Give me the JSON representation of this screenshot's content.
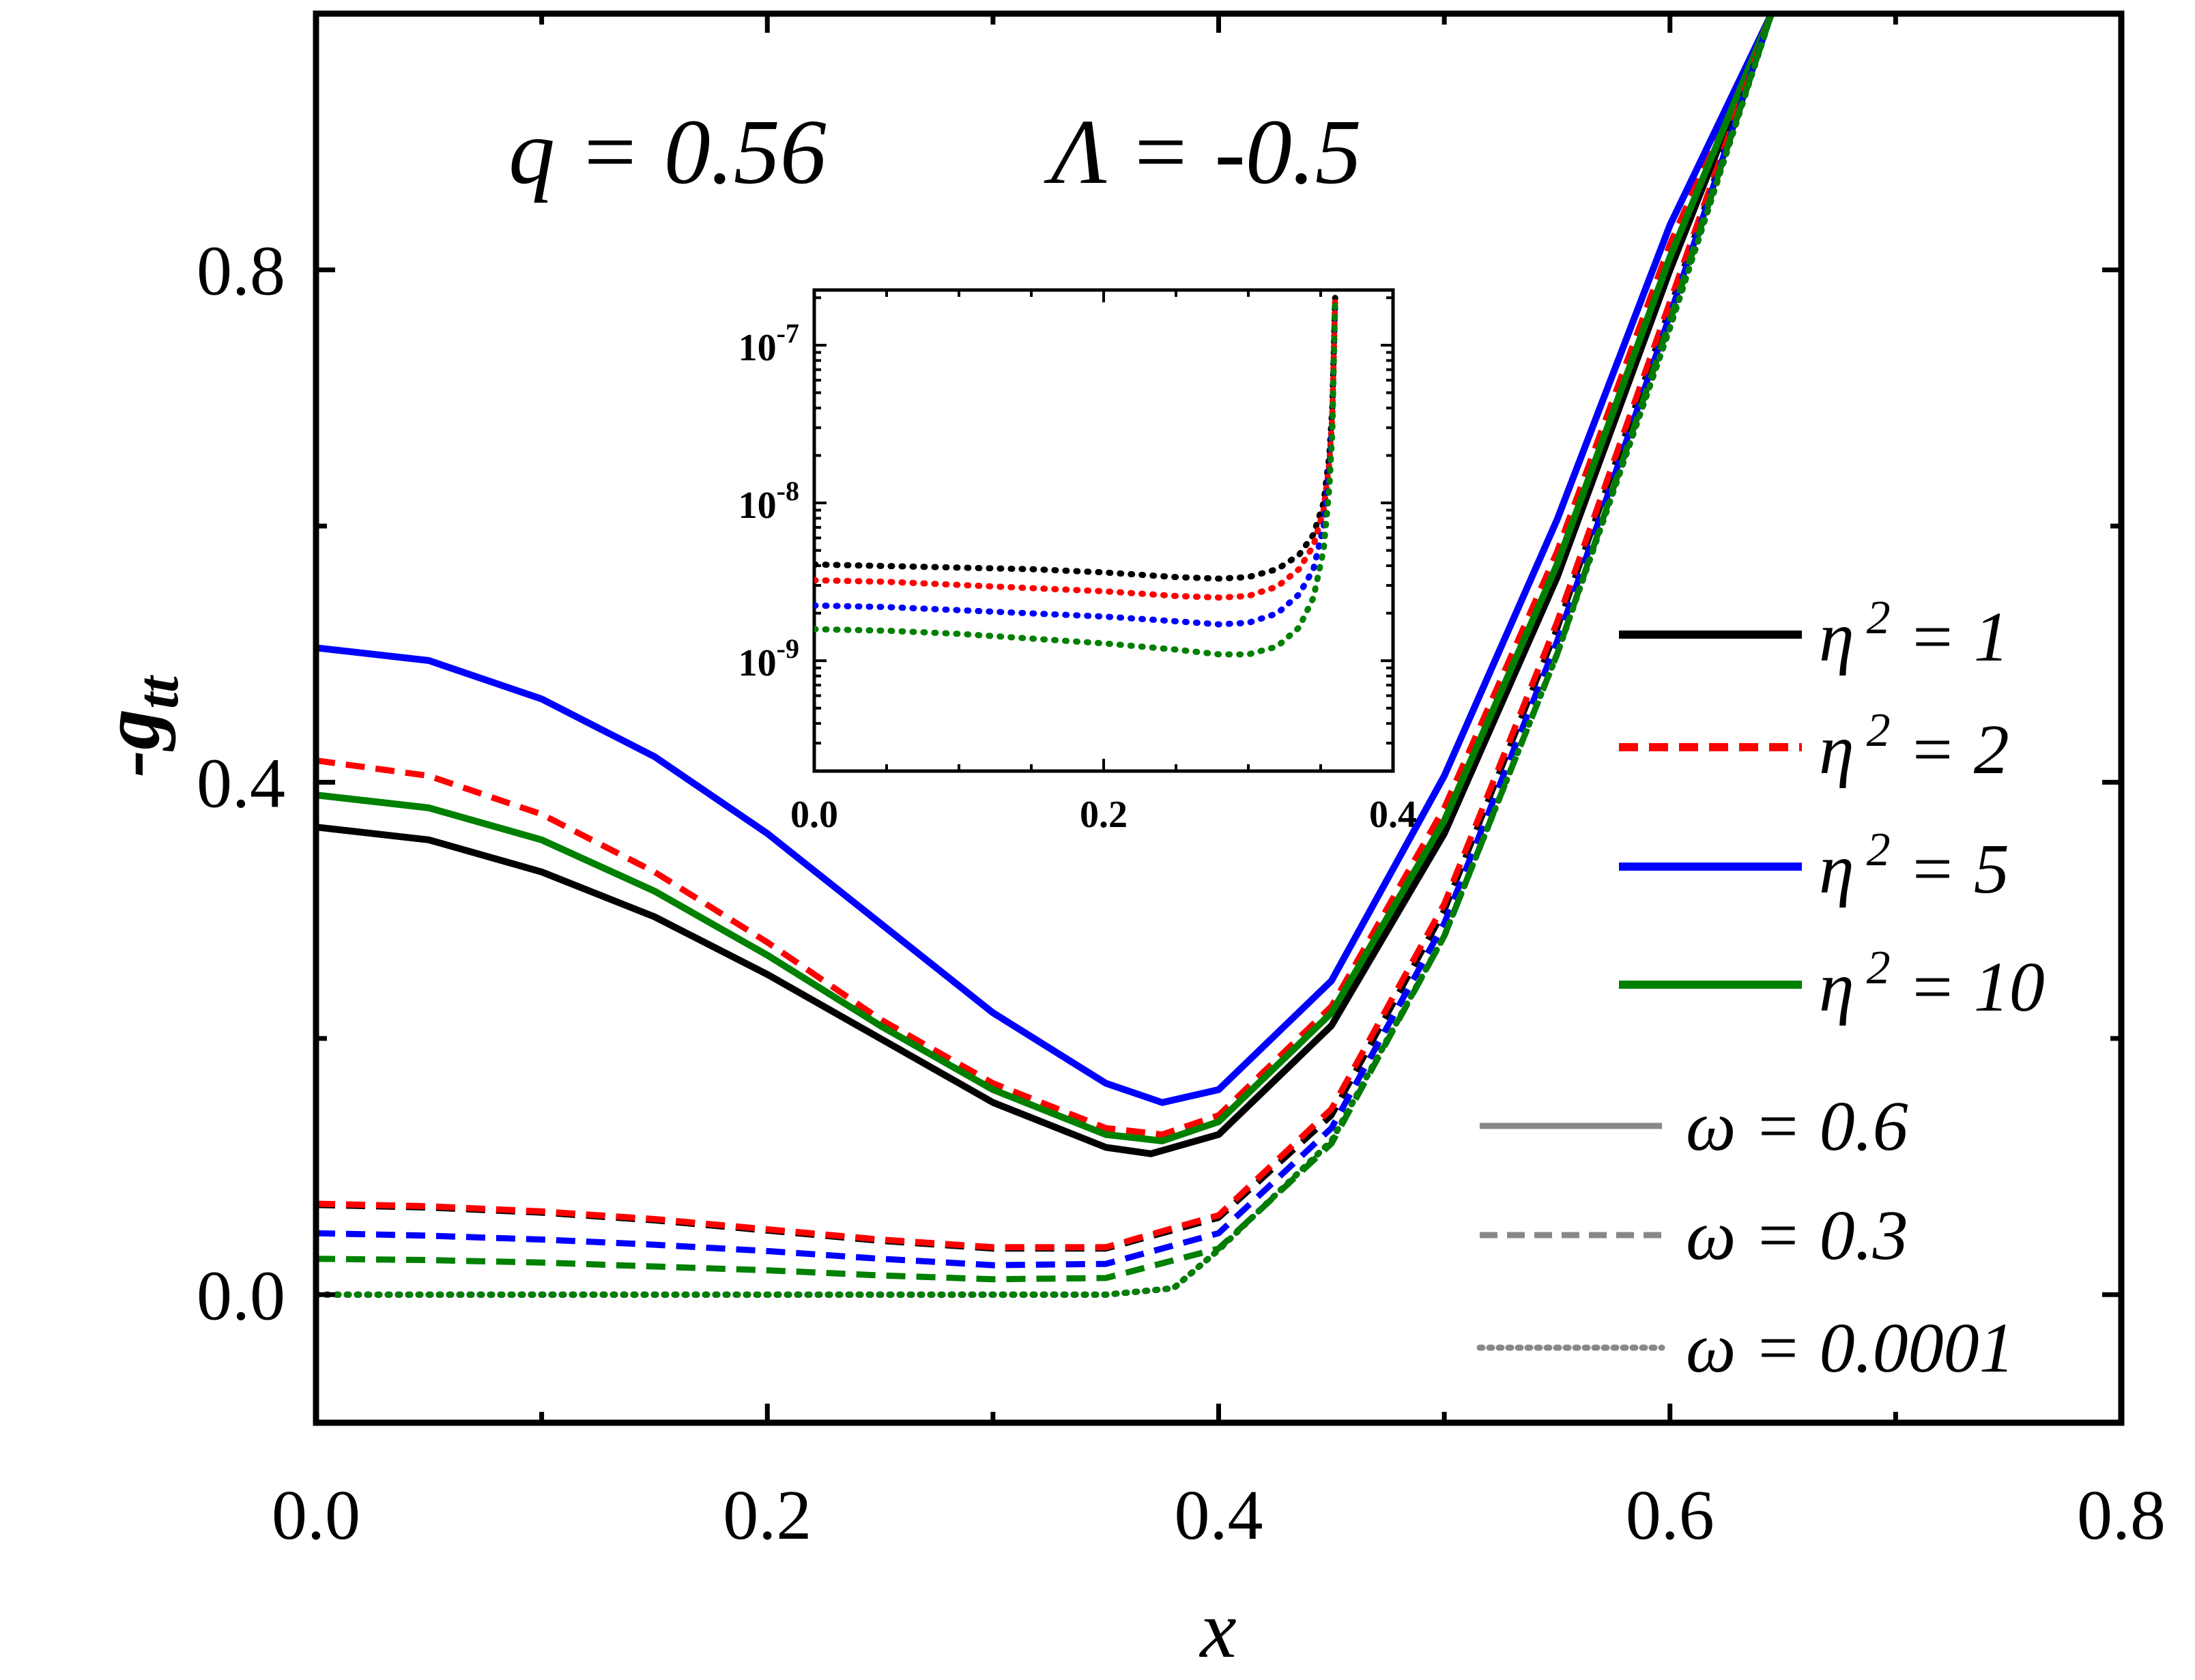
{
  "chart_data": [
    {
      "type": "line",
      "title": "",
      "annotation_q": "q = 0.56",
      "annotation_lambda": "Λ = -0.5",
      "xlabel": "x",
      "ylabel_prefix": "-g",
      "ylabel_sub": "tt",
      "xlim": [
        0.0,
        0.8
      ],
      "ylim": [
        -0.1,
        1.0
      ],
      "xticks": [
        "0.0",
        "0.2",
        "0.4",
        "0.6",
        "0.8"
      ],
      "yticks": [
        "0.0",
        "0.4",
        "0.8"
      ],
      "ytick_values": [
        0.0,
        0.4,
        0.8
      ],
      "xtick_values": [
        0.0,
        0.2,
        0.4,
        0.6,
        0.8
      ],
      "colors": {
        "eta1": "#000000",
        "eta2": "#ff0000",
        "eta5": "#0000ff",
        "eta10": "#008000",
        "legend_gray": "#888888"
      },
      "legend_eta": [
        {
          "label": "η² = 1",
          "prefix": "η",
          "sup": "2",
          "suffix": " = 1",
          "color": "#000000"
        },
        {
          "label": "η² = 2",
          "prefix": "η",
          "sup": "2",
          "suffix": " = 2",
          "color": "#ff0000",
          "dash": true
        },
        {
          "label": "η² = 5",
          "prefix": "η",
          "sup": "2",
          "suffix": " = 5",
          "color": "#0000ff"
        },
        {
          "label": "η² = 10",
          "prefix": "η",
          "sup": "2",
          "suffix": " = 10",
          "color": "#008000"
        }
      ],
      "legend_omega": [
        {
          "label": "ω = 0.6",
          "style": "solid"
        },
        {
          "label": "ω = 0.3",
          "style": "dash"
        },
        {
          "label": "ω = 0.0001",
          "style": "dot"
        }
      ],
      "series": [
        {
          "name": "eta2=1, omega=0.6",
          "color": "#000000",
          "style": "solid",
          "x": [
            0.0,
            0.05,
            0.1,
            0.15,
            0.2,
            0.25,
            0.3,
            0.35,
            0.37,
            0.4,
            0.45,
            0.5,
            0.55,
            0.6,
            0.645
          ],
          "y": [
            0.365,
            0.355,
            0.33,
            0.295,
            0.25,
            0.2,
            0.15,
            0.115,
            0.11,
            0.125,
            0.21,
            0.36,
            0.56,
            0.8,
            1.0
          ]
        },
        {
          "name": "eta2=2, omega=0.6",
          "color": "#ff0000",
          "style": "dash",
          "x": [
            0.0,
            0.05,
            0.1,
            0.15,
            0.2,
            0.25,
            0.3,
            0.35,
            0.375,
            0.4,
            0.45,
            0.5,
            0.55,
            0.6,
            0.645
          ],
          "y": [
            0.417,
            0.405,
            0.375,
            0.33,
            0.275,
            0.215,
            0.165,
            0.13,
            0.125,
            0.14,
            0.225,
            0.38,
            0.58,
            0.82,
            1.0
          ]
        },
        {
          "name": "eta2=5, omega=0.6",
          "color": "#0000ff",
          "style": "solid",
          "x": [
            0.0,
            0.05,
            0.1,
            0.15,
            0.2,
            0.25,
            0.3,
            0.35,
            0.375,
            0.4,
            0.45,
            0.5,
            0.55,
            0.6,
            0.645
          ],
          "y": [
            0.505,
            0.495,
            0.465,
            0.42,
            0.36,
            0.29,
            0.22,
            0.165,
            0.15,
            0.16,
            0.245,
            0.405,
            0.605,
            0.835,
            1.0
          ]
        },
        {
          "name": "eta2=10, omega=0.6",
          "color": "#008000",
          "style": "solid",
          "x": [
            0.0,
            0.05,
            0.1,
            0.15,
            0.2,
            0.25,
            0.3,
            0.35,
            0.375,
            0.4,
            0.45,
            0.5,
            0.55,
            0.6,
            0.645
          ],
          "y": [
            0.39,
            0.38,
            0.355,
            0.315,
            0.265,
            0.21,
            0.16,
            0.125,
            0.12,
            0.135,
            0.22,
            0.37,
            0.57,
            0.81,
            1.0
          ]
        },
        {
          "name": "eta2=1, omega=0.3",
          "color": "#000000",
          "style": "dash",
          "x": [
            0.0,
            0.05,
            0.1,
            0.15,
            0.2,
            0.25,
            0.3,
            0.35,
            0.4,
            0.45,
            0.5,
            0.55,
            0.6,
            0.645
          ],
          "y": [
            0.07,
            0.068,
            0.064,
            0.058,
            0.05,
            0.042,
            0.036,
            0.036,
            0.06,
            0.14,
            0.3,
            0.52,
            0.77,
            1.0
          ]
        },
        {
          "name": "eta2=2, omega=0.3",
          "color": "#ff0000",
          "style": "dash",
          "x": [
            0.0,
            0.05,
            0.1,
            0.15,
            0.2,
            0.25,
            0.3,
            0.35,
            0.4,
            0.45,
            0.5,
            0.55,
            0.6,
            0.645
          ],
          "y": [
            0.071,
            0.069,
            0.065,
            0.059,
            0.051,
            0.043,
            0.037,
            0.037,
            0.062,
            0.145,
            0.305,
            0.525,
            0.775,
            1.0
          ]
        },
        {
          "name": "eta2=5, omega=0.3",
          "color": "#0000ff",
          "style": "dash",
          "x": [
            0.0,
            0.05,
            0.1,
            0.15,
            0.2,
            0.25,
            0.3,
            0.35,
            0.4,
            0.45,
            0.5,
            0.55,
            0.6,
            0.645
          ],
          "y": [
            0.048,
            0.046,
            0.043,
            0.039,
            0.034,
            0.028,
            0.023,
            0.024,
            0.048,
            0.13,
            0.29,
            0.51,
            0.765,
            1.0
          ]
        },
        {
          "name": "eta2=10, omega=0.3",
          "color": "#008000",
          "style": "dash",
          "x": [
            0.0,
            0.05,
            0.1,
            0.15,
            0.2,
            0.25,
            0.3,
            0.35,
            0.4,
            0.45,
            0.5,
            0.55,
            0.6,
            0.645
          ],
          "y": [
            0.028,
            0.027,
            0.025,
            0.022,
            0.019,
            0.015,
            0.012,
            0.013,
            0.036,
            0.118,
            0.28,
            0.5,
            0.76,
            1.0
          ]
        },
        {
          "name": "eta2=1, omega=0.0001",
          "color": "#000000",
          "style": "dot",
          "x": [
            0.0,
            0.1,
            0.2,
            0.3,
            0.35,
            0.38,
            0.4,
            0.45,
            0.5,
            0.55,
            0.6,
            0.645
          ],
          "y": [
            0.0,
            0.0,
            0.0,
            0.0,
            0.0,
            0.005,
            0.035,
            0.12,
            0.28,
            0.5,
            0.755,
            1.0
          ]
        },
        {
          "name": "eta2=2, omega=0.0001",
          "color": "#ff0000",
          "style": "dot",
          "x": [
            0.0,
            0.1,
            0.2,
            0.3,
            0.35,
            0.38,
            0.4,
            0.45,
            0.5,
            0.55,
            0.6,
            0.645
          ],
          "y": [
            0.0,
            0.0,
            0.0,
            0.0,
            0.0,
            0.005,
            0.035,
            0.12,
            0.28,
            0.5,
            0.755,
            1.0
          ]
        },
        {
          "name": "eta2=5, omega=0.0001",
          "color": "#0000ff",
          "style": "dot",
          "x": [
            0.0,
            0.1,
            0.2,
            0.3,
            0.35,
            0.38,
            0.4,
            0.45,
            0.5,
            0.55,
            0.6,
            0.645
          ],
          "y": [
            0.0,
            0.0,
            0.0,
            0.0,
            0.0,
            0.005,
            0.035,
            0.12,
            0.28,
            0.5,
            0.755,
            1.0
          ]
        },
        {
          "name": "eta2=10, omega=0.0001",
          "color": "#008000",
          "style": "dot",
          "x": [
            0.0,
            0.1,
            0.2,
            0.3,
            0.35,
            0.38,
            0.4,
            0.45,
            0.5,
            0.55,
            0.6,
            0.645
          ],
          "y": [
            0.0,
            0.0,
            0.0,
            0.0,
            0.0,
            0.005,
            0.035,
            0.12,
            0.28,
            0.5,
            0.755,
            1.0
          ]
        }
      ]
    },
    {
      "type": "line",
      "title": "inset",
      "yscale": "log",
      "xlim": [
        0.0,
        0.4
      ],
      "ylim_log10": [
        -9.7,
        -6.65
      ],
      "xticks": [
        "0.0",
        "0.2",
        "0.4"
      ],
      "xtick_values": [
        0.0,
        0.2,
        0.4
      ],
      "yticks": [
        {
          "base": "10",
          "exp": "-9",
          "log10": -9
        },
        {
          "base": "10",
          "exp": "-8",
          "log10": -8
        },
        {
          "base": "10",
          "exp": "-7",
          "log10": -7
        }
      ],
      "series": [
        {
          "name": "eta2=1, omega=0.0001",
          "color": "#000000",
          "style": "dot",
          "x": [
            0.0,
            0.05,
            0.1,
            0.15,
            0.2,
            0.25,
            0.28,
            0.3,
            0.32,
            0.335,
            0.345,
            0.352,
            0.356,
            0.358,
            0.36
          ],
          "y_log10": [
            -8.39,
            -8.4,
            -8.41,
            -8.42,
            -8.44,
            -8.47,
            -8.48,
            -8.47,
            -8.42,
            -8.33,
            -8.2,
            -8.0,
            -7.7,
            -7.4,
            -6.7
          ]
        },
        {
          "name": "eta2=2, omega=0.0001",
          "color": "#ff0000",
          "style": "dot",
          "x": [
            0.0,
            0.05,
            0.1,
            0.15,
            0.2,
            0.25,
            0.28,
            0.3,
            0.32,
            0.335,
            0.345,
            0.352,
            0.356,
            0.358,
            0.36
          ],
          "y_log10": [
            -8.49,
            -8.5,
            -8.52,
            -8.54,
            -8.56,
            -8.59,
            -8.6,
            -8.59,
            -8.53,
            -8.42,
            -8.27,
            -8.05,
            -7.75,
            -7.45,
            -6.7
          ]
        },
        {
          "name": "eta2=5, omega=0.0001",
          "color": "#0000ff",
          "style": "dot",
          "x": [
            0.0,
            0.05,
            0.1,
            0.15,
            0.2,
            0.25,
            0.28,
            0.3,
            0.32,
            0.335,
            0.345,
            0.352,
            0.356,
            0.358,
            0.36
          ],
          "y_log10": [
            -8.65,
            -8.66,
            -8.68,
            -8.7,
            -8.72,
            -8.75,
            -8.77,
            -8.76,
            -8.7,
            -8.58,
            -8.42,
            -8.15,
            -7.8,
            -7.48,
            -6.7
          ]
        },
        {
          "name": "eta2=10, omega=0.0001",
          "color": "#008000",
          "style": "dot",
          "x": [
            0.0,
            0.05,
            0.1,
            0.15,
            0.2,
            0.25,
            0.28,
            0.3,
            0.32,
            0.335,
            0.345,
            0.352,
            0.356,
            0.358,
            0.36
          ],
          "y_log10": [
            -8.8,
            -8.81,
            -8.83,
            -8.86,
            -8.89,
            -8.93,
            -8.96,
            -8.96,
            -8.91,
            -8.79,
            -8.6,
            -8.3,
            -7.9,
            -7.55,
            -6.7
          ]
        }
      ]
    }
  ]
}
